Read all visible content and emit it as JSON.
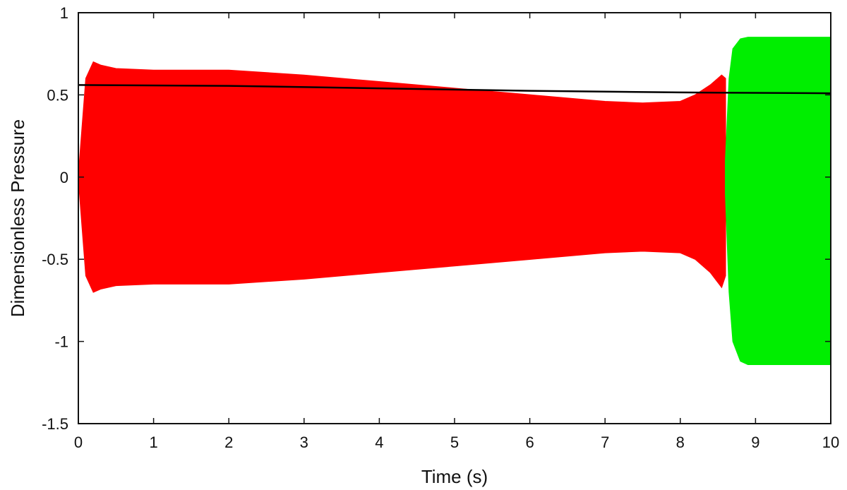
{
  "chart_data": {
    "type": "line",
    "title": "",
    "xlabel": "Time (s)",
    "ylabel": "Dimensionless Pressure",
    "xlim": [
      0,
      10
    ],
    "ylim": [
      -1.5,
      1
    ],
    "x_ticks": [
      0,
      1,
      2,
      3,
      4,
      5,
      6,
      7,
      8,
      9,
      10
    ],
    "y_ticks": [
      1,
      0.5,
      0,
      -0.5,
      -1,
      -1.5
    ],
    "x_tick_labels": [
      "0",
      "1",
      "2",
      "3",
      "4",
      "5",
      "6",
      "7",
      "8",
      "9",
      "10"
    ],
    "y_tick_labels": [
      "1",
      "0.5",
      "0",
      "-0.5",
      "-1",
      "-1.5"
    ],
    "grid": false,
    "legend": "none",
    "series": [
      {
        "color": "#ff0000",
        "style": "oscillation-band",
        "x": [
          0,
          0.05,
          0.1,
          0.2,
          0.3,
          0.5,
          1,
          2,
          3,
          4,
          5,
          6,
          7,
          7.5,
          8,
          8.2,
          8.4,
          8.55,
          8.6
        ],
        "upper": [
          0,
          0.3,
          0.6,
          0.7,
          0.68,
          0.66,
          0.65,
          0.65,
          0.62,
          0.58,
          0.54,
          0.5,
          0.46,
          0.45,
          0.46,
          0.5,
          0.56,
          0.62,
          0.6
        ],
        "lower": [
          0,
          -0.3,
          -0.6,
          -0.7,
          -0.68,
          -0.66,
          -0.65,
          -0.65,
          -0.62,
          -0.58,
          -0.54,
          -0.5,
          -0.46,
          -0.45,
          -0.46,
          -0.5,
          -0.58,
          -0.67,
          -0.6
        ]
      },
      {
        "color": "#00ee00",
        "style": "oscillation-band",
        "x": [
          8.6,
          8.65,
          8.7,
          8.8,
          8.9,
          9,
          10
        ],
        "upper": [
          0.1,
          0.6,
          0.78,
          0.84,
          0.85,
          0.85,
          0.85
        ],
        "lower": [
          -0.1,
          -0.7,
          -1.0,
          -1.12,
          -1.14,
          -1.14,
          -1.14
        ]
      },
      {
        "color": "#000000",
        "style": "line",
        "x": [
          0,
          2,
          4,
          6,
          8,
          10
        ],
        "y": [
          0.56,
          0.555,
          0.54,
          0.525,
          0.515,
          0.51
        ]
      }
    ]
  }
}
